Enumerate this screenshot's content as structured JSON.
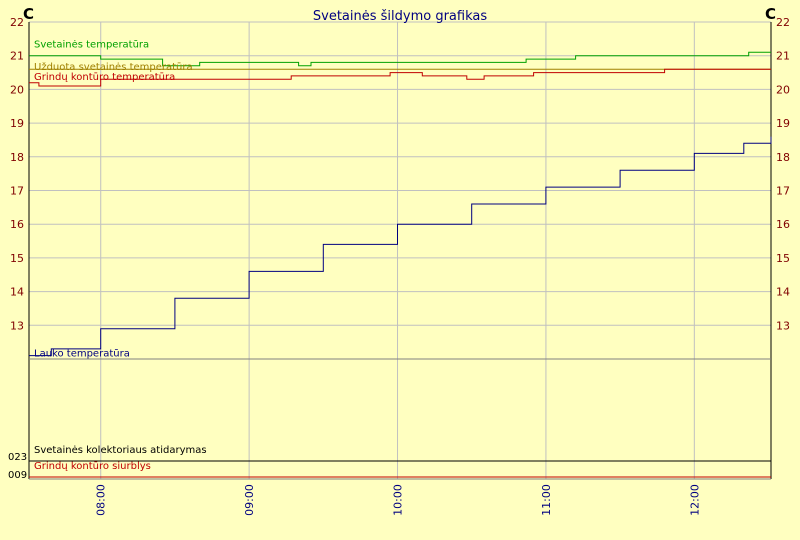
{
  "chart_data": {
    "type": "line",
    "title": "Svetainės šildymo grafikas",
    "y_unit_left": "C",
    "y_unit_right": "C",
    "ylim": [
      12,
      22
    ],
    "yticks": [
      13,
      14,
      15,
      16,
      17,
      18,
      19,
      20,
      21,
      22
    ],
    "xlim": [
      "07:31",
      "12:31"
    ],
    "xticks": [
      "08:00",
      "09:00",
      "10:00",
      "11:00",
      "12:00"
    ],
    "grid": true,
    "series": [
      {
        "name": "Svetainės temperatūra",
        "color": "#00a000",
        "points": [
          [
            "07:31",
            21.0
          ],
          [
            "07:58",
            21.0
          ],
          [
            "08:00",
            20.9
          ],
          [
            "08:15",
            20.9
          ],
          [
            "08:25",
            20.7
          ],
          [
            "08:40",
            20.8
          ],
          [
            "09:10",
            20.8
          ],
          [
            "09:20",
            20.7
          ],
          [
            "09:25",
            20.8
          ],
          [
            "10:50",
            20.8
          ],
          [
            "10:52",
            20.9
          ],
          [
            "11:10",
            20.9
          ],
          [
            "11:12",
            21.0
          ],
          [
            "12:15",
            21.0
          ],
          [
            "12:22",
            21.1
          ],
          [
            "12:31",
            21.1
          ]
        ]
      },
      {
        "name": "Užduota svetainės temperatūra",
        "color": "#a08000",
        "points": [
          [
            "07:31",
            20.6
          ],
          [
            "12:31",
            20.6
          ]
        ]
      },
      {
        "name": "Grindų kontūro temperatūra",
        "color": "#c00000",
        "points": [
          [
            "07:31",
            20.2
          ],
          [
            "07:35",
            20.1
          ],
          [
            "07:58",
            20.1
          ],
          [
            "08:00",
            20.3
          ],
          [
            "09:15",
            20.3
          ],
          [
            "09:17",
            20.4
          ],
          [
            "09:55",
            20.4
          ],
          [
            "09:57",
            20.5
          ],
          [
            "10:10",
            20.4
          ],
          [
            "10:25",
            20.4
          ],
          [
            "10:28",
            20.3
          ],
          [
            "10:35",
            20.4
          ],
          [
            "10:50",
            20.4
          ],
          [
            "10:55",
            20.5
          ],
          [
            "11:45",
            20.5
          ],
          [
            "11:48",
            20.6
          ],
          [
            "12:31",
            20.6
          ]
        ]
      },
      {
        "name": "Lauko temperatūra",
        "color": "#000080",
        "points": [
          [
            "07:31",
            12.1
          ],
          [
            "07:40",
            12.3
          ],
          [
            "08:00",
            12.9
          ],
          [
            "08:30",
            13.8
          ],
          [
            "09:00",
            14.6
          ],
          [
            "09:30",
            15.4
          ],
          [
            "10:00",
            16.0
          ],
          [
            "10:30",
            16.6
          ],
          [
            "11:00",
            17.1
          ],
          [
            "11:30",
            17.6
          ],
          [
            "12:00",
            18.1
          ],
          [
            "12:20",
            18.4
          ],
          [
            "12:31",
            18.6
          ]
        ]
      }
    ],
    "binary_series": [
      {
        "name": "Svetainės kolektoriaus atidarymas",
        "axis_label": "023",
        "color": "#000000"
      },
      {
        "name": "Grindų kontūro siurblys",
        "axis_label": "009",
        "color": "#c00000"
      }
    ]
  }
}
